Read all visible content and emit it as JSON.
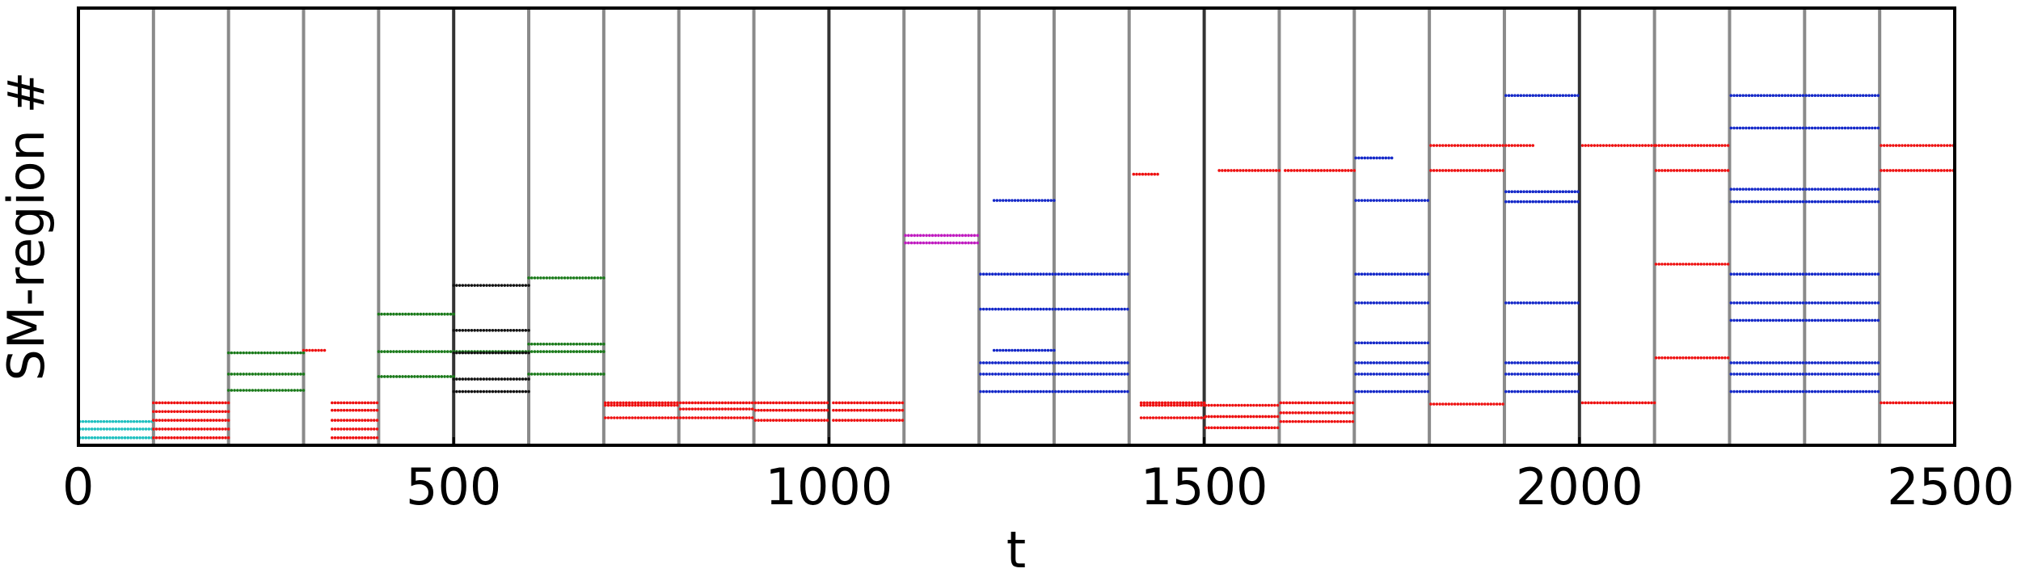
{
  "chart_data": {
    "type": "scatter",
    "title": "",
    "xlabel": "t",
    "ylabel": "SM-region #",
    "xlim": [
      0,
      2500
    ],
    "ylim": [
      0,
      35
    ],
    "xticks": [
      0,
      500,
      1000,
      1500,
      2000,
      2500
    ],
    "x_tick_labels": [
      "0",
      "500",
      "1000",
      "1500",
      "2000",
      "2500"
    ],
    "y_tick_labels_visible": false,
    "grid": false,
    "legend": "none",
    "vertical_separators": [
      100,
      200,
      300,
      400,
      500,
      600,
      700,
      800,
      900,
      1000,
      1100,
      1200,
      1300,
      1400,
      1500,
      1600,
      1700,
      1800,
      1900,
      2000,
      2100,
      2200,
      2300,
      2400
    ],
    "series": [
      {
        "color": "#20c0c0",
        "segments": [
          {
            "x0": 2,
            "x1": 100,
            "levels": [
              0.6,
              1.3,
              1.9
            ]
          }
        ]
      },
      {
        "color": "#ee1111",
        "segments": [
          {
            "x0": 100,
            "x1": 200,
            "levels": [
              0.6,
              1.3,
              2.0,
              2.7,
              3.4
            ]
          },
          {
            "x0": 300,
            "x1": 330,
            "levels": [
              7.6
            ]
          },
          {
            "x0": 338,
            "x1": 398,
            "levels": [
              0.6,
              1.3,
              2.0,
              2.8,
              3.4
            ]
          },
          {
            "x0": 702,
            "x1": 800,
            "levels": [
              2.2,
              3.2,
              3.4
            ]
          },
          {
            "x0": 802,
            "x1": 900,
            "levels": [
              2.2,
              2.9,
              3.4
            ]
          },
          {
            "x0": 902,
            "x1": 1000,
            "levels": [
              2.0,
              2.8,
              3.4
            ]
          },
          {
            "x0": 1006,
            "x1": 1100,
            "levels": [
              2.0,
              2.8,
              3.4
            ]
          },
          {
            "x0": 1416,
            "x1": 1500,
            "levels": [
              2.2,
              3.2,
              3.4
            ]
          },
          {
            "x0": 1406,
            "x1": 1440,
            "levels": [
              21.7
            ]
          },
          {
            "x0": 1502,
            "x1": 1600,
            "levels": [
              1.4,
              2.3,
              3.2
            ]
          },
          {
            "x0": 1520,
            "x1": 1600,
            "levels": [
              22.0
            ]
          },
          {
            "x0": 1602,
            "x1": 1700,
            "levels": [
              1.9,
              2.6,
              3.4
            ]
          },
          {
            "x0": 1608,
            "x1": 1700,
            "levels": [
              22.0
            ]
          },
          {
            "x0": 1802,
            "x1": 1900,
            "levels": [
              3.3,
              22.0,
              24.0
            ]
          },
          {
            "x0": 1902,
            "x1": 1940,
            "levels": [
              24.0
            ]
          },
          {
            "x0": 2004,
            "x1": 2100,
            "levels": [
              3.4,
              24.0
            ]
          },
          {
            "x0": 2102,
            "x1": 2200,
            "levels": [
              22.0,
              24.0
            ]
          },
          {
            "x0": 2102,
            "x1": 2200,
            "levels": [
              14.5,
              7.0
            ]
          },
          {
            "x0": 2402,
            "x1": 2500,
            "levels": [
              3.4,
              22.0,
              24.0
            ]
          }
        ]
      },
      {
        "color": "#1a7a1a",
        "segments": [
          {
            "x0": 200,
            "x1": 300,
            "levels": [
              4.4,
              5.7,
              7.4
            ]
          },
          {
            "x0": 400,
            "x1": 500,
            "levels": [
              5.5,
              7.5,
              10.5
            ]
          },
          {
            "x0": 500,
            "x1": 700,
            "levels": [
              7.5
            ]
          },
          {
            "x0": 600,
            "x1": 700,
            "levels": [
              5.7,
              8.1,
              13.4
            ]
          }
        ]
      },
      {
        "color": "#111111",
        "segments": [
          {
            "x0": 500,
            "x1": 600,
            "levels": [
              4.3,
              5.3,
              7.4,
              9.2,
              12.8
            ]
          }
        ]
      },
      {
        "color": "#c01cc0",
        "segments": [
          {
            "x0": 1102,
            "x1": 1200,
            "levels": [
              16.2,
              16.8
            ]
          }
        ]
      },
      {
        "color": "#1428c8",
        "segments": [
          {
            "x0": 1202,
            "x1": 1400,
            "levels": [
              4.3,
              5.7,
              6.6,
              13.7,
              10.9
            ]
          },
          {
            "x0": 1220,
            "x1": 1300,
            "levels": [
              19.6,
              7.6
            ]
          },
          {
            "x0": 1702,
            "x1": 1800,
            "levels": [
              4.3,
              5.7,
              6.6,
              8.2,
              11.4,
              13.7,
              19.6
            ]
          },
          {
            "x0": 1702,
            "x1": 1750,
            "levels": [
              23.0
            ]
          },
          {
            "x0": 1902,
            "x1": 2000,
            "levels": [
              4.3,
              5.7,
              6.6,
              11.4,
              19.5,
              20.3,
              28.0
            ]
          },
          {
            "x0": 2202,
            "x1": 2400,
            "levels": [
              4.3,
              5.7,
              6.6,
              10.0,
              11.4,
              13.7,
              19.5,
              20.5,
              25.4,
              28.0
            ]
          }
        ]
      }
    ]
  }
}
